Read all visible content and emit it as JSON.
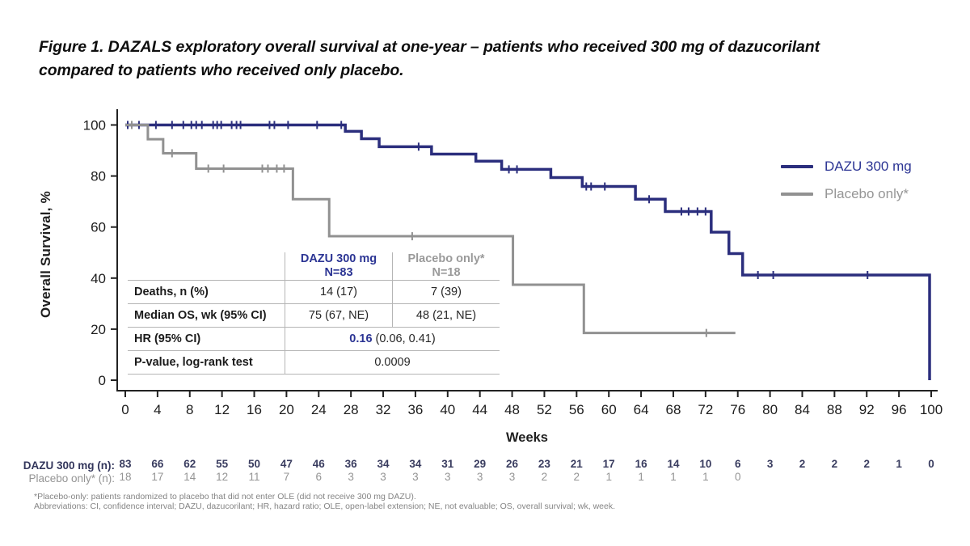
{
  "title": {
    "line1": "Figure 1. DAZALS exploratory overall survival at one-year – patients who received 300 mg of dazucorilant",
    "line2": "compared to patients who received only placebo."
  },
  "chart_data": {
    "type": "line",
    "subtype": "kaplan_meier_step",
    "xlabel": "Weeks",
    "ylabel": "Overall Survival, %",
    "xlim": [
      0,
      100
    ],
    "ylim": [
      0,
      100
    ],
    "x_ticks": [
      0,
      4,
      8,
      12,
      16,
      20,
      24,
      28,
      32,
      36,
      40,
      44,
      48,
      52,
      56,
      60,
      64,
      68,
      72,
      76,
      80,
      84,
      88,
      92,
      96,
      100
    ],
    "y_ticks": [
      0,
      20,
      40,
      60,
      80,
      100
    ],
    "grid": false,
    "legend_position": "right",
    "series": [
      {
        "name": "DAZU 300 mg",
        "color": "#2b2e7d",
        "line_width": 3.5,
        "steps": [
          [
            0,
            100
          ],
          [
            27.3,
            97.5
          ],
          [
            29.3,
            94.6
          ],
          [
            31.5,
            91.5
          ],
          [
            38,
            88.6
          ],
          [
            43.5,
            85.8
          ],
          [
            46.7,
            82.6
          ],
          [
            52.8,
            79.4
          ],
          [
            56.7,
            75.9
          ],
          [
            63.3,
            70.9
          ],
          [
            67,
            66.1
          ],
          [
            72.7,
            58.0
          ],
          [
            74.9,
            49.6
          ],
          [
            76.6,
            41.2
          ]
        ],
        "end_week": 99.8,
        "drop_to_zero_at_end": true,
        "censor_marks": [
          [
            0.3,
            100
          ],
          [
            1.7,
            100
          ],
          [
            3.8,
            100
          ],
          [
            5.8,
            100
          ],
          [
            7.2,
            100
          ],
          [
            8.2,
            100
          ],
          [
            8.8,
            100
          ],
          [
            9.5,
            100
          ],
          [
            10.9,
            100
          ],
          [
            11.4,
            100
          ],
          [
            11.9,
            100
          ],
          [
            13.2,
            100
          ],
          [
            13.8,
            100
          ],
          [
            14.3,
            100
          ],
          [
            17.9,
            100
          ],
          [
            18.5,
            100
          ],
          [
            20.2,
            100
          ],
          [
            23.8,
            100
          ],
          [
            26.8,
            100
          ],
          [
            36.4,
            91.5
          ],
          [
            47.6,
            82.6
          ],
          [
            48.6,
            82.6
          ],
          [
            57.2,
            75.9
          ],
          [
            57.8,
            75.9
          ],
          [
            59.5,
            75.9
          ],
          [
            65,
            70.9
          ],
          [
            69,
            66.1
          ],
          [
            69.9,
            66.1
          ],
          [
            71,
            66.1
          ],
          [
            72,
            66.1
          ],
          [
            78.5,
            41.2
          ],
          [
            80.4,
            41.2
          ],
          [
            92.1,
            41.2
          ]
        ]
      },
      {
        "name": "Placebo only*",
        "color": "#919191",
        "line_width": 3,
        "steps": [
          [
            0,
            100
          ],
          [
            2.8,
            94.4
          ],
          [
            4.7,
            88.9
          ],
          [
            8.8,
            82.9
          ],
          [
            20.8,
            70.9
          ],
          [
            25.3,
            56.4
          ],
          [
            48.1,
            37.4
          ],
          [
            56.9,
            18.5
          ]
        ],
        "end_week": 75.7,
        "drop_to_zero_at_end": false,
        "censor_marks": [
          [
            0.8,
            100
          ],
          [
            5.8,
            88.9
          ],
          [
            10.3,
            82.9
          ],
          [
            12.2,
            82.9
          ],
          [
            17.0,
            82.9
          ],
          [
            17.7,
            82.9
          ],
          [
            18.8,
            82.9
          ],
          [
            19.7,
            82.9
          ],
          [
            35.6,
            56.4
          ],
          [
            72.1,
            18.5
          ]
        ]
      }
    ]
  },
  "axes": {
    "y_label": "Overall Survival, %",
    "x_label": "Weeks"
  },
  "legend": {
    "items": [
      {
        "label": "DAZU 300 mg",
        "color": "#2b2e7d"
      },
      {
        "label": "Placebo only*",
        "color": "#919191"
      }
    ]
  },
  "stats_table": {
    "headers": [
      {
        "line1": "DAZU 300 mg",
        "line2": "N=83",
        "color": "#2c3594"
      },
      {
        "line1": "Placebo only*",
        "line2": "N=18",
        "color": "#9a9a9a"
      }
    ],
    "rows": [
      {
        "label": "Deaths, n (%)",
        "dazu": "14 (17)",
        "placebo": "7 (39)"
      },
      {
        "label": "Median OS, wk (95% CI)",
        "dazu": "75 (67, NE)",
        "placebo": "48 (21, NE)"
      },
      {
        "label": "HR (95% CI)",
        "merged_bold": "0.16",
        "merged_rest": " (0.06, 0.41)"
      },
      {
        "label": "P-value, log-rank test",
        "merged": "0.0009"
      }
    ]
  },
  "risk_table": {
    "rows": [
      {
        "label": "DAZU 300 mg (n):",
        "color": "#3a3d60",
        "bold": true,
        "values": [
          "83",
          "66",
          "62",
          "55",
          "50",
          "47",
          "46",
          "36",
          "34",
          "34",
          "31",
          "29",
          "26",
          "23",
          "21",
          "17",
          "16",
          "14",
          "10",
          "6",
          "3",
          "2",
          "2",
          "2",
          "1",
          "0"
        ]
      },
      {
        "label": "Placebo only* (n):",
        "color": "#949494",
        "bold": false,
        "values": [
          "18",
          "17",
          "14",
          "12",
          "11",
          "7",
          "6",
          "3",
          "3",
          "3",
          "3",
          "3",
          "3",
          "2",
          "2",
          "1",
          "1",
          "1",
          "1",
          "0",
          "",
          "",
          "",
          "",
          "",
          ""
        ]
      }
    ]
  },
  "footnotes": {
    "line1": "*Placebo-only: patients randomized to placebo that did not enter OLE (did not receive 300 mg DAZU).",
    "line2": "Abbreviations: CI, confidence interval; DAZU, dazucorilant; HR, hazard ratio; OLE, open-label extension; NE, not evaluable; OS, overall survival; wk, week."
  }
}
